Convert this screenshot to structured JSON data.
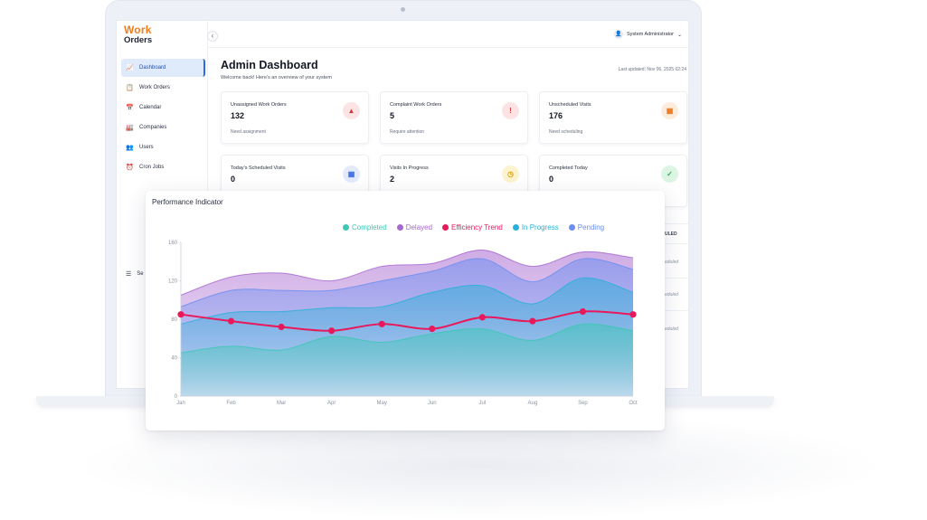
{
  "app": {
    "logo_line1": "Work",
    "logo_line2": "Orders",
    "collapse_icon": "‹"
  },
  "sidebar": {
    "items": [
      {
        "label": "Dashboard",
        "icon": "📈",
        "active": true
      },
      {
        "label": "Work Orders",
        "icon": "📋",
        "color": "#2faa55"
      },
      {
        "label": "Calendar",
        "icon": "📅",
        "color": "#8a4bd0"
      },
      {
        "label": "Companies",
        "icon": "🏭",
        "color": "#f07d1a"
      },
      {
        "label": "Users",
        "icon": "👥",
        "color": "#3a5bbf"
      },
      {
        "label": "Cron Jobs",
        "icon": "⏰",
        "color": "#f07d1a"
      }
    ],
    "settings_label": "Se",
    "settings_icon": "☰"
  },
  "topbar": {
    "user_name": "System Administrator",
    "user_icon": "👤",
    "chevron": "⌄"
  },
  "page": {
    "title": "Admin Dashboard",
    "subtitle": "Welcome back! Here's an overview of your system",
    "last_updated": "Last updated: Nov 06, 2025 02:24"
  },
  "cards": [
    {
      "title": "Unassigned Work Orders",
      "value": "132",
      "sub": "Need assignment",
      "icon": "▲",
      "icon_bg": "#fde3e3",
      "icon_fg": "#d63a3a"
    },
    {
      "title": "Complaint Work Orders",
      "value": "5",
      "sub": "Require attention",
      "icon": "!",
      "icon_bg": "#fde3e3",
      "icon_fg": "#d63a3a"
    },
    {
      "title": "Unscheduled Visits",
      "value": "176",
      "sub": "Need scheduling",
      "icon": "▦",
      "icon_bg": "#fdebdc",
      "icon_fg": "#e8741a"
    },
    {
      "title": "Today's Scheduled Visits",
      "value": "0",
      "sub": "",
      "icon": "▦",
      "icon_bg": "#e2eafb",
      "icon_fg": "#3a6ae0"
    },
    {
      "title": "Visits In Progress",
      "value": "2",
      "sub": "",
      "icon": "◷",
      "icon_bg": "#fdf3cf",
      "icon_fg": "#d6a10a"
    },
    {
      "title": "Completed Today",
      "value": "0",
      "sub": "",
      "icon": "✓",
      "icon_bg": "#dcf5e3",
      "icon_fg": "#2faa55"
    }
  ],
  "table_peek": {
    "header": "ULED",
    "rows": [
      "eduled",
      "eduled",
      "eduled"
    ]
  },
  "chart": {
    "title": "Performance Indicator"
  },
  "chart_data": {
    "type": "area",
    "title": "Performance Indicator",
    "categories": [
      "Jan",
      "Feb",
      "Mar",
      "Apr",
      "May",
      "Jun",
      "Jul",
      "Aug",
      "Sep",
      "Oct"
    ],
    "ylim": [
      0,
      160
    ],
    "yticks": [
      0,
      40,
      80,
      120,
      160
    ],
    "stacked": true,
    "series": [
      {
        "name": "Completed",
        "type": "area",
        "color": "#3cc8b4",
        "values": [
          45,
          52,
          48,
          62,
          56,
          65,
          70,
          58,
          75,
          68
        ]
      },
      {
        "name": "In Progress",
        "type": "area",
        "color": "#2ab0d8",
        "values": [
          30,
          35,
          40,
          30,
          37,
          43,
          45,
          38,
          48,
          40
        ]
      },
      {
        "name": "Pending",
        "type": "area",
        "color": "#6b8ef0",
        "values": [
          18,
          23,
          22,
          18,
          27,
          22,
          28,
          23,
          20,
          24
        ]
      },
      {
        "name": "Delayed",
        "type": "area",
        "color": "#a868d0",
        "values": [
          12,
          14,
          18,
          10,
          15,
          8,
          9,
          16,
          7,
          12
        ]
      },
      {
        "name": "Efficiency Trend",
        "type": "line",
        "color": "#e8185a",
        "values": [
          85,
          78,
          72,
          68,
          75,
          70,
          82,
          78,
          88,
          85
        ]
      }
    ],
    "legend_order": [
      "Completed",
      "Delayed",
      "Efficiency Trend",
      "In Progress",
      "Pending"
    ],
    "legend_position": "top-right",
    "grid": false
  }
}
